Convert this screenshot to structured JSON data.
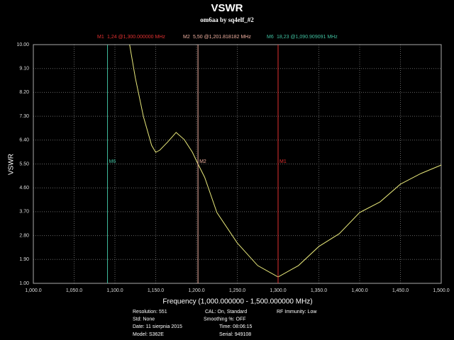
{
  "chart_data": {
    "type": "line",
    "title": "VSWR",
    "subtitle": "om6aa by sq4elf_#2",
    "x_label": "Frequency (1,000.000000 - 1,500.000000 MHz)",
    "y_label": "VSWR",
    "x": [
      1118,
      1125,
      1135,
      1145,
      1150,
      1155,
      1165,
      1175,
      1185,
      1195,
      1201.818182,
      1210,
      1225,
      1250,
      1275,
      1300,
      1325,
      1350,
      1375,
      1400,
      1425,
      1450,
      1475,
      1500
    ],
    "series": [
      {
        "color": "#e8e87a",
        "values": [
          10,
          8.75,
          7.28,
          6.2,
          5.94,
          6.02,
          6.34,
          6.69,
          6.42,
          5.94,
          5.5,
          5.0,
          3.67,
          2.52,
          1.67,
          1.24,
          1.67,
          2.39,
          2.87,
          3.67,
          4.07,
          4.74,
          5.14,
          5.46
        ]
      }
    ],
    "xlim": [
      1000,
      1500
    ],
    "ylim": [
      1,
      10
    ],
    "xticks": [
      {
        "value": 1000,
        "label": "1,000.0"
      },
      {
        "value": 1050,
        "label": "1,050.0"
      },
      {
        "value": 1100,
        "label": "1,100.0"
      },
      {
        "value": 1150,
        "label": "1,150.0"
      },
      {
        "value": 1200,
        "label": "1,200.0"
      },
      {
        "value": 1250,
        "label": "1,250.0"
      },
      {
        "value": 1300,
        "label": "1,300.0"
      },
      {
        "value": 1350,
        "label": "1,350.0"
      },
      {
        "value": 1400,
        "label": "1,400.0"
      },
      {
        "value": 1450,
        "label": "1,450.0"
      },
      {
        "value": 1500,
        "label": "1,500.0"
      }
    ],
    "yticks": [
      {
        "value": 10,
        "label": "10.00"
      },
      {
        "value": 9.1,
        "label": "9.10"
      },
      {
        "value": 8.2,
        "label": "8.20"
      },
      {
        "value": 7.3,
        "label": "7.30"
      },
      {
        "value": 6.4,
        "label": "6.40"
      },
      {
        "value": 5.5,
        "label": "5.50"
      },
      {
        "value": 4.6,
        "label": "4.60"
      },
      {
        "value": 3.7,
        "label": "3.70"
      },
      {
        "value": 2.8,
        "label": "2.80"
      },
      {
        "value": 1.9,
        "label": "1.90"
      },
      {
        "value": 1,
        "label": "1.00"
      }
    ],
    "grid": true,
    "markers": [
      {
        "label": "M1",
        "reading": "1,24 @1,300.000000 MHz",
        "x": 1300,
        "color": "#e03030"
      },
      {
        "label": "M2",
        "reading": "5,50 @1,201.818182 MHz",
        "x": 1201.818182,
        "color": "#f0b0a0"
      },
      {
        "label": "M6",
        "reading": "18,23 @1,090.909091 MHz",
        "x": 1090.909091,
        "color": "#40c0a0"
      }
    ],
    "footer": [
      [
        "Resolution: 551",
        "CAL: On, Standard",
        "RF Immunity: Low"
      ],
      [
        "Std: None",
        "Smoothing %:  OFF"
      ],
      [
        "Date: 11 sierpnia 2015",
        "Time: 08:06:15"
      ],
      [
        "Model: S362E",
        "Serial: 949108"
      ]
    ]
  }
}
